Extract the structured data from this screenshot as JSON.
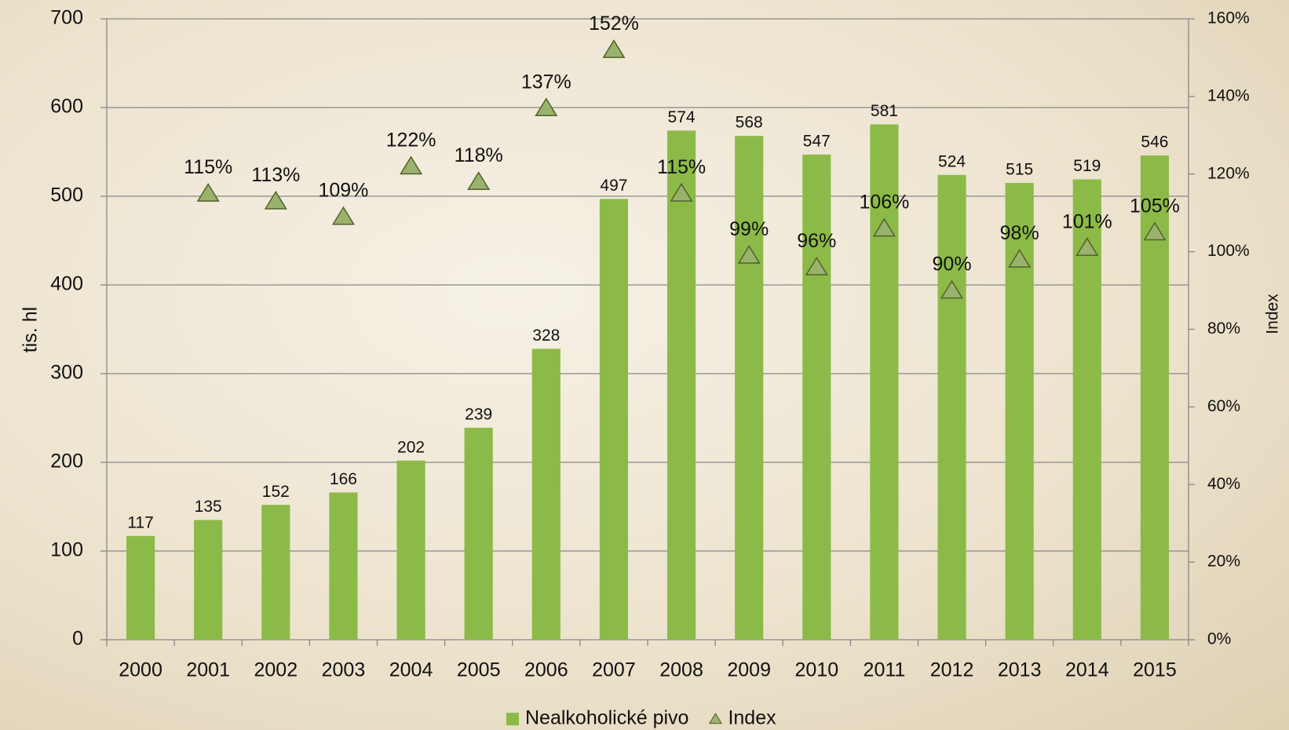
{
  "chart_data": {
    "type": "bar",
    "categories": [
      "2000",
      "2001",
      "2002",
      "2003",
      "2004",
      "2005",
      "2006",
      "2007",
      "2008",
      "2009",
      "2010",
      "2011",
      "2012",
      "2013",
      "2014",
      "2015"
    ],
    "series": [
      {
        "name": "Nealkoholické pivo",
        "color": "#8cba48",
        "values": [
          117,
          135,
          152,
          166,
          202,
          239,
          328,
          497,
          574,
          568,
          547,
          581,
          524,
          515,
          519,
          546
        ]
      },
      {
        "name": "Index",
        "color": "#9bb26c",
        "axis": "y2",
        "marker": "triangle",
        "values": [
          null,
          115,
          113,
          109,
          122,
          118,
          137,
          152,
          115,
          99,
          96,
          106,
          90,
          98,
          101,
          105
        ],
        "value_labels": [
          null,
          "115%",
          "113%",
          "109%",
          "122%",
          "118%",
          "137%",
          "152%",
          "115%",
          "99%",
          "96%",
          "106%",
          "90%",
          "98%",
          "101%",
          "105%"
        ]
      }
    ],
    "ylabel": "tis. hl",
    "y2label": "Index",
    "ylim": [
      0,
      700
    ],
    "yticks": [
      0,
      100,
      200,
      300,
      400,
      500,
      600,
      700
    ],
    "y2lim": [
      0,
      160
    ],
    "y2ticks": [
      {
        "value": 0,
        "label": "0%"
      },
      {
        "value": 20,
        "label": "20%"
      },
      {
        "value": 40,
        "label": "40%"
      },
      {
        "value": 60,
        "label": "60%"
      },
      {
        "value": 80,
        "label": "80%"
      },
      {
        "value": 100,
        "label": "100%"
      },
      {
        "value": 120,
        "label": "120%"
      },
      {
        "value": 140,
        "label": "140%"
      },
      {
        "value": 160,
        "label": "160%"
      }
    ],
    "grid": true,
    "legend": "bottom"
  }
}
